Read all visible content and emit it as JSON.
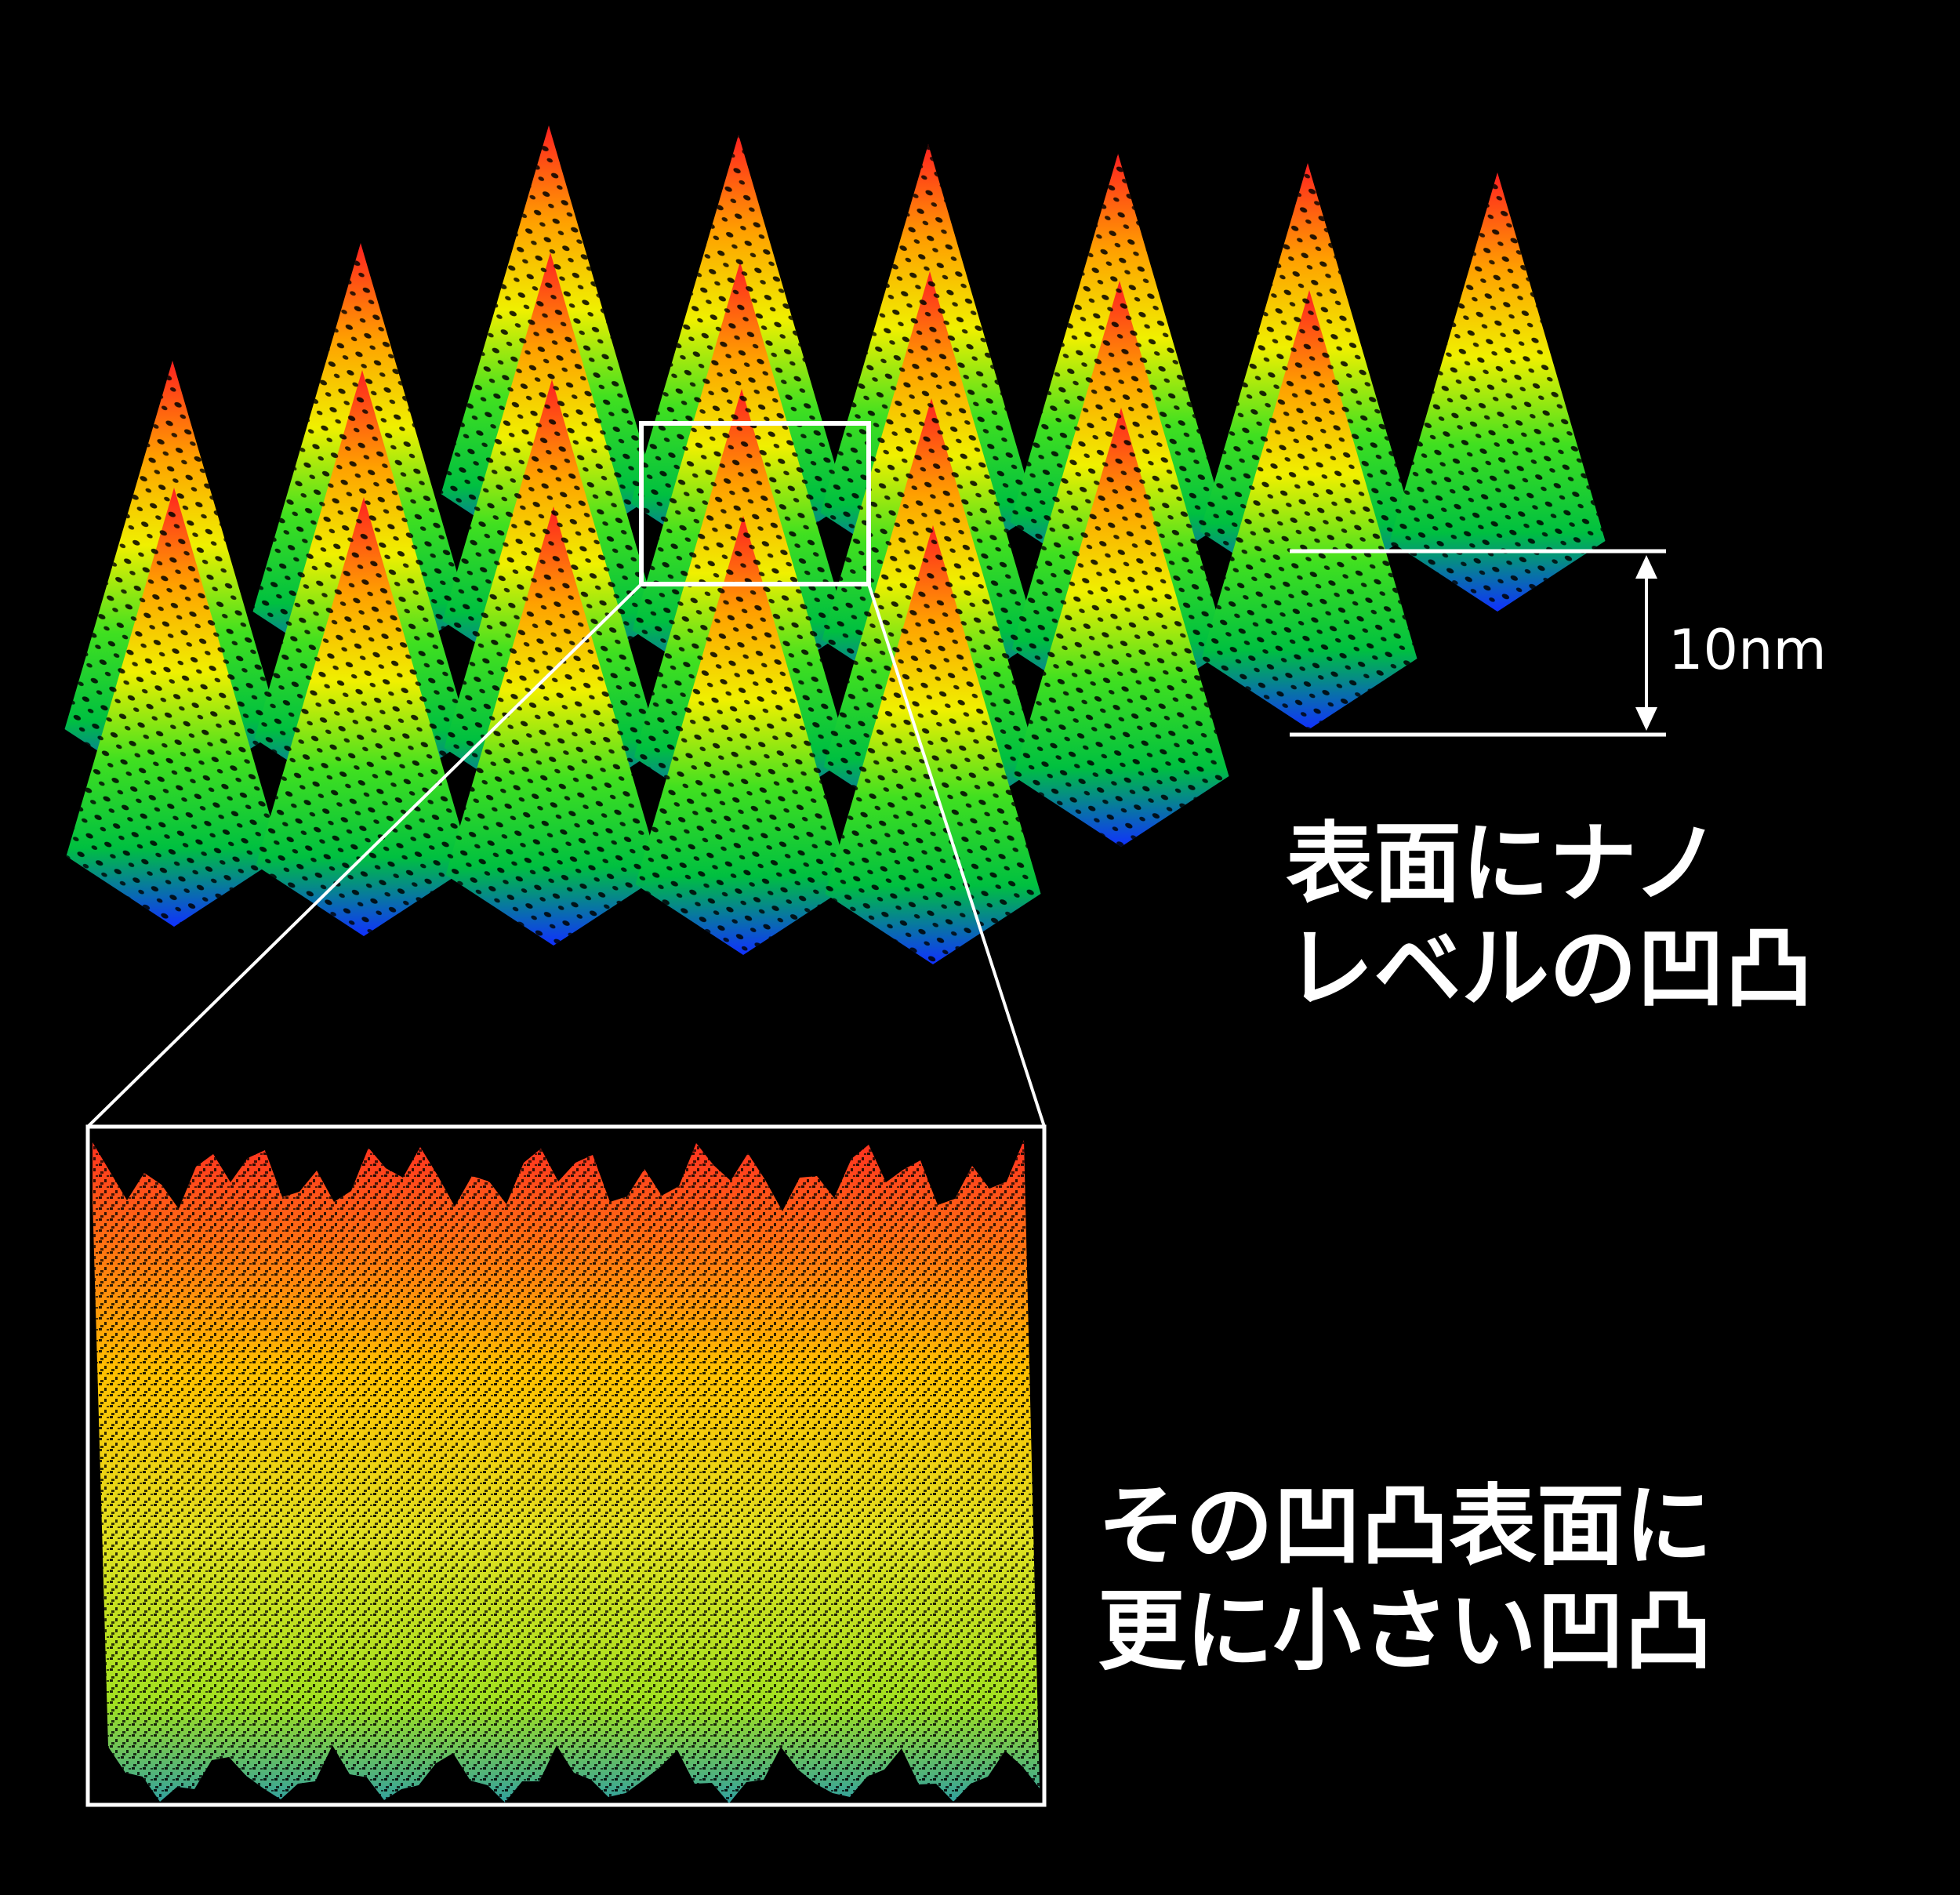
{
  "scale_bar": {
    "label": "10nm"
  },
  "caption_macro": {
    "line1": "表面にナノ",
    "line2": "レベルの凹凸"
  },
  "caption_micro": {
    "line1": "その凹凸表面に",
    "line2": "更に小さい凹凸"
  },
  "colors": {
    "background": "#000000",
    "height_scale": [
      "#1030ff",
      "#00c040",
      "#40e020",
      "#f0f000",
      "#ffa000",
      "#ff2020"
    ],
    "outline": "#ffffff",
    "text": "#ffffff"
  }
}
